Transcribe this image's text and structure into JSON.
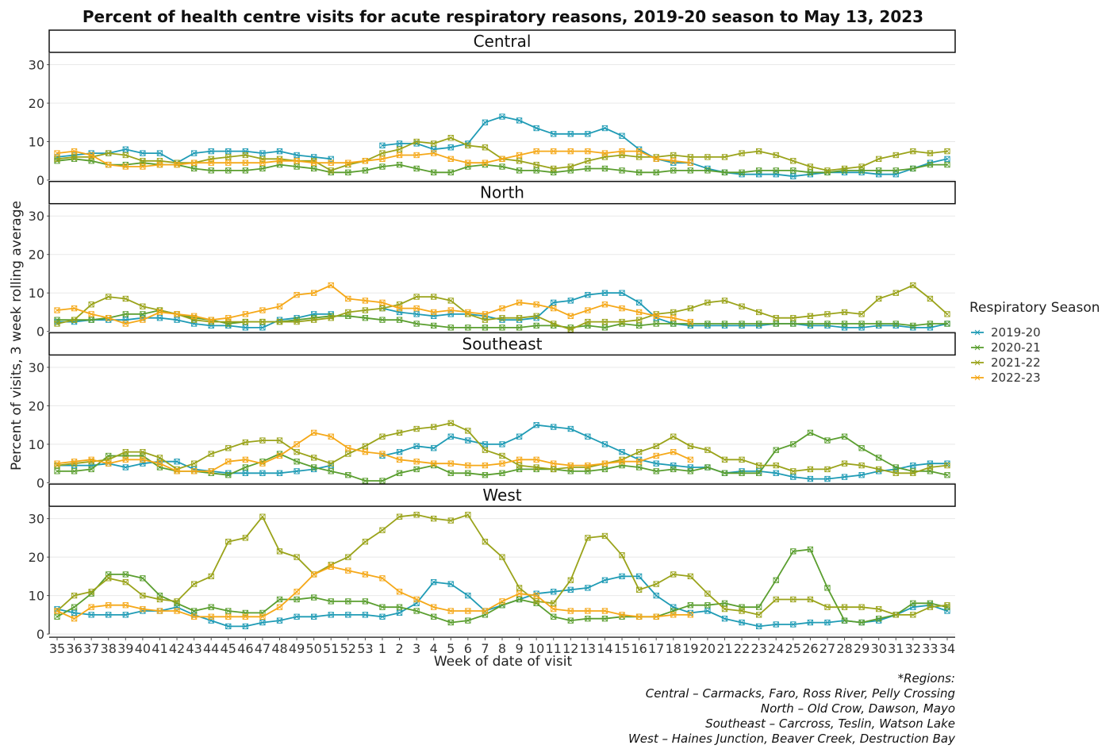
{
  "chart_data": {
    "type": "line",
    "title": "Percent of health centre visits for acute respiratory reasons, 2019-20 season to May 13, 2023",
    "xlabel": "Week of date of visit",
    "ylabel": "Percent of visits, 3 week rolling average",
    "ylim": [
      0,
      33
    ],
    "yticks": [
      0,
      10,
      20,
      30
    ],
    "grid": true,
    "legend_title": "Respiratory Season",
    "legend_position": "right",
    "x": [
      "35",
      "36",
      "37",
      "38",
      "39",
      "40",
      "41",
      "42",
      "43",
      "44",
      "45",
      "46",
      "47",
      "48",
      "49",
      "50",
      "51",
      "52",
      "53",
      "1",
      "2",
      "3",
      "4",
      "5",
      "6",
      "7",
      "8",
      "9",
      "10",
      "11",
      "12",
      "13",
      "14",
      "15",
      "16",
      "17",
      "18",
      "19",
      "20",
      "21",
      "22",
      "23",
      "24",
      "25",
      "26",
      "27",
      "28",
      "29",
      "30",
      "31",
      "32",
      "33",
      "34"
    ],
    "colors": {
      "2019-20": "#1f9bb5",
      "2020-21": "#5a9e2f",
      "2021-22": "#9aa31a",
      "2022-23": "#f5a818"
    },
    "panels": [
      {
        "name": "Central",
        "series": [
          {
            "name": "2019-20",
            "values": [
              6,
              6.5,
              7,
              7,
              8,
              7,
              7,
              4.5,
              7,
              7.5,
              7.5,
              7.5,
              7,
              7.5,
              6.5,
              6,
              5.5,
              null,
              null,
              9,
              9.5,
              9.5,
              8,
              8.5,
              9.5,
              15,
              16.5,
              15.5,
              13.5,
              12,
              12,
              12,
              13.5,
              11.5,
              8,
              5.5,
              4.5,
              4.5,
              3,
              2,
              1.5,
              1.5,
              1.5,
              1,
              1.5,
              2,
              2,
              2,
              1.5,
              1.5,
              3,
              4.5,
              5.5
            ]
          },
          {
            "name": "2020-21",
            "values": [
              5,
              5.5,
              5,
              4,
              4,
              4.5,
              4,
              4,
              3,
              2.5,
              2.5,
              2.5,
              3,
              4,
              3.5,
              3,
              2,
              2,
              2.5,
              3.5,
              4,
              3,
              2,
              2,
              3.5,
              4,
              3.5,
              2.5,
              2.5,
              2,
              2.5,
              3,
              3,
              2.5,
              2,
              2,
              2.5,
              2.5,
              2.5,
              2,
              2,
              2.5,
              2.5,
              2.5,
              2,
              2,
              2.5,
              2.5,
              2.5,
              2.5,
              3,
              4,
              4
            ]
          },
          {
            "name": "2021-22",
            "values": [
              5.5,
              6,
              6,
              7,
              6.5,
              5,
              5,
              4.5,
              4.5,
              5.5,
              6,
              6.5,
              5.5,
              5.5,
              5,
              5,
              2.5,
              4,
              5,
              7,
              8,
              10,
              9.5,
              11,
              9,
              8.5,
              5.5,
              5,
              4,
              3,
              3.5,
              5,
              6,
              6.5,
              6,
              6,
              6.5,
              6,
              6,
              6,
              7,
              7.5,
              6.5,
              5,
              3.5,
              2.5,
              3,
              3.5,
              5.5,
              6.5,
              7.5,
              7,
              7.5
            ]
          },
          {
            "name": "2022-23",
            "values": [
              7,
              7.5,
              6.5,
              4,
              3.5,
              3.5,
              4,
              4,
              4.5,
              4.5,
              4.5,
              4.5,
              4.5,
              5,
              5,
              4.5,
              4.5,
              4.5,
              5,
              5.5,
              6.5,
              6.5,
              7,
              5.5,
              4.5,
              4.5,
              5.5,
              6.5,
              7.5,
              7.5,
              7.5,
              7.5,
              7,
              7.5,
              7.5,
              5.5,
              5,
              4.5,
              null,
              null,
              null,
              null,
              null,
              null,
              null,
              null,
              null,
              null,
              null,
              null,
              null,
              null,
              null
            ]
          }
        ]
      },
      {
        "name": "North",
        "series": [
          {
            "name": "2019-20",
            "values": [
              2.5,
              2.5,
              3,
              3,
              3,
              3.5,
              3.5,
              3,
              2,
              1.5,
              1.5,
              1,
              1,
              3,
              3.5,
              4.5,
              4.5,
              null,
              null,
              6,
              5,
              4.5,
              4,
              4.5,
              4.5,
              4,
              3,
              3,
              3.5,
              7.5,
              8,
              9.5,
              10,
              10,
              7.5,
              3.5,
              2,
              1.5,
              1.5,
              1.5,
              1.5,
              1.5,
              2,
              2,
              1.5,
              1.5,
              1,
              1,
              1.5,
              1.5,
              1,
              1,
              2
            ]
          },
          {
            "name": "2020-21",
            "values": [
              3,
              3,
              3,
              3.5,
              4.5,
              4.5,
              5.5,
              4.5,
              3.5,
              3,
              2,
              2.5,
              2.5,
              2.5,
              3,
              3.5,
              4,
              4,
              3.5,
              3,
              3,
              2,
              1.5,
              1,
              1,
              1,
              1,
              1,
              1.5,
              1.5,
              1,
              1.5,
              1,
              2,
              1.5,
              2,
              2,
              2,
              2,
              2,
              2,
              2,
              2,
              2,
              2,
              2,
              2,
              2,
              2,
              2,
              1.5,
              2,
              2
            ]
          },
          {
            "name": "2021-22",
            "values": [
              2,
              3,
              7,
              9,
              8.5,
              6.5,
              5.5,
              4.5,
              3,
              2.5,
              2.5,
              2.5,
              2.5,
              2.5,
              2.5,
              3,
              3.5,
              5,
              5.5,
              6,
              7,
              9,
              9,
              8,
              4.5,
              3,
              3.5,
              3.5,
              4,
              2,
              0.5,
              2.5,
              2.5,
              2.5,
              3,
              4.5,
              5,
              6,
              7.5,
              8,
              6.5,
              5,
              3.5,
              3.5,
              4,
              4.5,
              5,
              4.5,
              8.5,
              10,
              12,
              8.5,
              4.5
            ]
          },
          {
            "name": "2022-23",
            "values": [
              5.5,
              6,
              4.5,
              3.5,
              2,
              3,
              5,
              4.5,
              4,
              3,
              3.5,
              4.5,
              5.5,
              6.5,
              9.5,
              10,
              12,
              8.5,
              8,
              7.5,
              6,
              6,
              5,
              5.5,
              5,
              4.5,
              6,
              7.5,
              7,
              6,
              4,
              5.5,
              7,
              6,
              5,
              4,
              3.5,
              2.5,
              null,
              null,
              null,
              null,
              null,
              null,
              null,
              null,
              null,
              null,
              null,
              null,
              null,
              null,
              null
            ]
          }
        ]
      },
      {
        "name": "Southeast",
        "series": [
          {
            "name": "2019-20",
            "values": [
              4.5,
              4.5,
              4.5,
              5,
              4,
              5,
              5.5,
              5.5,
              3.5,
              3,
              2.5,
              2.5,
              2.5,
              2.5,
              3,
              3.5,
              4.5,
              null,
              null,
              7,
              8,
              9.5,
              9,
              12,
              11,
              10,
              10,
              12,
              15,
              14.5,
              14,
              12,
              10,
              8,
              6,
              5,
              4.5,
              4,
              4,
              2.5,
              3,
              3,
              2.5,
              1.5,
              1,
              1,
              1.5,
              2,
              3,
              3.5,
              4.5,
              5,
              5
            ]
          },
          {
            "name": "2020-21",
            "values": [
              3,
              3,
              3.5,
              7,
              7,
              7,
              4,
              3,
              3,
              2.5,
              2,
              4,
              5.5,
              7.5,
              5.5,
              4,
              3,
              2,
              0.5,
              0.5,
              2.5,
              3.5,
              4.5,
              2.5,
              2.5,
              2,
              2.5,
              3.5,
              3.5,
              3.5,
              3,
              3,
              3.5,
              4.5,
              4,
              3,
              3.5,
              3,
              4,
              2.5,
              2.5,
              2.5,
              8.5,
              10,
              13,
              11,
              12,
              9,
              6.5,
              4,
              3,
              3,
              2
            ]
          },
          {
            "name": "2021-22",
            "values": [
              4.5,
              5,
              5.5,
              6,
              8,
              8,
              6.5,
              3.5,
              5,
              7.5,
              9,
              10.5,
              11,
              11,
              8,
              6.5,
              5,
              7.5,
              9.5,
              12,
              13,
              14,
              14.5,
              15.5,
              13.5,
              8.5,
              7,
              4.5,
              4,
              3.5,
              4,
              4,
              5,
              6,
              8,
              9.5,
              12,
              9.5,
              8.5,
              6,
              6,
              4.5,
              4.5,
              3,
              3.5,
              3.5,
              5,
              4.5,
              3.5,
              2.5,
              2.5,
              4,
              4.5
            ]
          },
          {
            "name": "2022-23",
            "values": [
              5,
              5.5,
              6,
              5,
              6,
              6,
              5,
              3,
              3,
              3,
              5.5,
              6,
              5,
              7,
              10,
              13,
              12,
              9,
              8,
              7.5,
              6,
              5.5,
              5,
              5,
              4.5,
              4.5,
              5,
              6,
              6,
              5,
              4.5,
              4.5,
              5,
              5.5,
              5.5,
              7,
              8,
              6,
              null,
              null,
              null,
              null,
              null,
              null,
              null,
              null,
              null,
              null,
              null,
              null,
              null,
              null,
              null
            ]
          }
        ]
      },
      {
        "name": "West",
        "series": [
          {
            "name": "2019-20",
            "values": [
              6.5,
              5.5,
              5,
              5,
              5,
              6,
              6,
              7,
              5,
              3.5,
              2,
              2,
              3,
              3.5,
              4.5,
              4.5,
              5,
              5,
              5,
              4.5,
              5.5,
              8,
              13.5,
              13,
              10,
              6,
              7.5,
              9,
              10.5,
              11,
              11.5,
              12,
              14,
              15,
              15,
              10,
              7,
              5.5,
              6,
              4,
              3,
              2,
              2.5,
              2.5,
              3,
              3,
              3.5,
              3,
              3.5,
              5,
              7,
              7.5,
              6
            ]
          },
          {
            "name": "2020-21",
            "values": [
              4.5,
              7,
              10.5,
              15.5,
              15.5,
              14.5,
              10,
              8,
              6,
              7,
              6,
              5.5,
              5.5,
              9,
              9,
              9.5,
              8.5,
              8.5,
              8.5,
              7,
              7,
              6,
              4.5,
              3,
              3.5,
              5,
              7.5,
              9,
              8,
              4.5,
              3.5,
              4,
              4,
              4.5,
              4.5,
              4.5,
              6,
              7.5,
              7.5,
              8,
              7,
              7,
              14,
              21.5,
              22,
              12,
              3.5,
              3,
              4,
              5,
              8,
              8,
              7
            ]
          },
          {
            "name": "2021-22",
            "values": [
              6,
              10,
              11,
              14.5,
              13.5,
              10,
              9,
              8.5,
              13,
              15,
              24,
              25,
              30.5,
              21.5,
              20,
              15.5,
              18,
              20,
              24,
              27,
              30.5,
              31,
              30,
              29.5,
              31,
              24,
              20,
              12,
              8.5,
              8,
              14,
              25,
              25.5,
              20.5,
              11.5,
              13,
              15.5,
              15,
              10.5,
              6.5,
              6,
              5,
              9,
              9,
              9,
              7,
              7,
              7,
              6.5,
              5,
              5,
              7,
              7.5
            ]
          },
          {
            "name": "2022-23",
            "values": [
              6,
              4,
              7,
              7.5,
              7.5,
              6.5,
              6,
              6,
              4.5,
              4.5,
              4.5,
              4.5,
              4.5,
              7,
              11,
              15.5,
              17.5,
              16.5,
              15.5,
              14.5,
              11,
              9,
              7,
              6,
              6,
              6,
              8.5,
              10.5,
              10,
              6.5,
              6,
              6,
              6,
              5,
              4.5,
              4.5,
              5,
              5,
              null,
              null,
              null,
              null,
              null,
              null,
              null,
              null,
              null,
              null,
              null,
              null,
              null,
              null,
              null
            ]
          }
        ]
      }
    ]
  },
  "caption": {
    "heading": "*Regions:",
    "lines": [
      "Central – Carmacks, Faro, Ross River, Pelly Crossing",
      "North – Old Crow, Dawson, Mayo",
      "Southeast – Carcross, Teslin, Watson Lake",
      "West – Haines Junction, Beaver Creek, Destruction Bay"
    ]
  }
}
